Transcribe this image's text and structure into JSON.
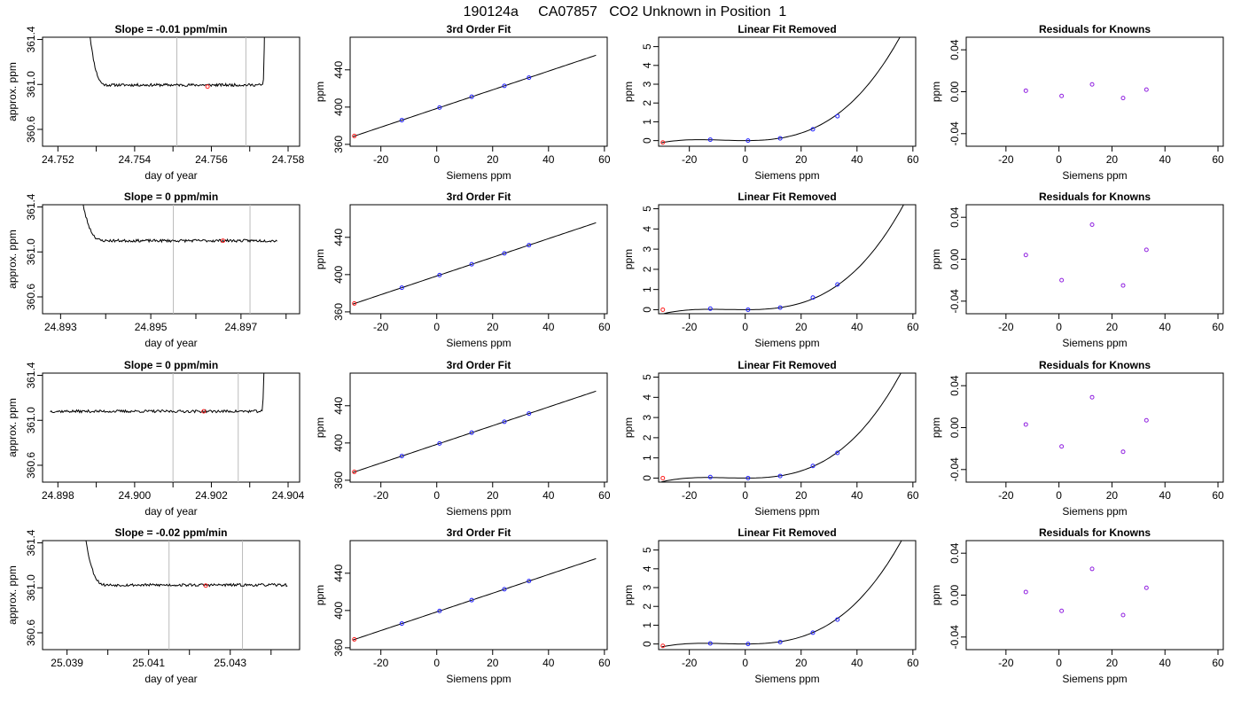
{
  "page_title": "190124a     CA07857   CO2 Unknown in Position  1",
  "colors": {
    "line": "#000000",
    "known": "#2020ff",
    "unknown": "#ff2020",
    "residual": "#9020e0",
    "window": "#bbbbbb"
  },
  "chart_data": [
    {
      "row": 1,
      "type": "line",
      "title": "Slope =  -0.01  ppm/min",
      "xlabel": "day of year",
      "ylabel": "approx. ppm",
      "xlim": [
        24.7516,
        24.7583
      ],
      "xticks": [
        24.752,
        24.753,
        24.754,
        24.755,
        24.756,
        24.757,
        24.758
      ],
      "xtick_labels": [
        "24.752",
        "",
        "24.754",
        "",
        "24.756",
        "",
        "24.758"
      ],
      "ylim": [
        360.45,
        361.42
      ],
      "yticks": [
        360.6,
        361.0,
        361.4
      ],
      "ytick_labels": [
        "360.6",
        "361.0",
        "361.4"
      ],
      "window": [
        24.7551,
        24.7569
      ],
      "marker": [
        24.7559,
        360.98
      ],
      "trace": {
        "x_start": 24.7528,
        "x_end": 24.7574,
        "base": 360.995,
        "noise": 0.012,
        "seed": 11,
        "pre_end": 24.7533,
        "post_start": 24.75735
      }
    },
    {
      "row": 1,
      "type": "scatter",
      "title": "3rd Order Fit",
      "xlabel": "Siemens ppm",
      "ylabel": "ppm",
      "xlim": [
        -31,
        61
      ],
      "xticks": [
        -20,
        0,
        20,
        40,
        60
      ],
      "ylim": [
        358,
        475
      ],
      "yticks": [
        360,
        400,
        440
      ],
      "fit": "linear",
      "slope": 1.003,
      "intercept": 398.5,
      "fit_range": [
        -30,
        57
      ],
      "knowns": {
        "x": [
          -12.5,
          1,
          12.5,
          24.2,
          33
        ],
        "y": [
          386.0,
          399.5,
          411.1,
          422.8,
          431.6
        ]
      },
      "unknown": [
        -29.5,
        369.0
      ]
    },
    {
      "row": 1,
      "type": "scatter",
      "title": "Linear Fit Removed",
      "xlabel": "Siemens ppm",
      "ylabel": "ppm",
      "xlim": [
        -31,
        61
      ],
      "xticks": [
        -20,
        0,
        20,
        40,
        60
      ],
      "ylim": [
        -0.3,
        5.5
      ],
      "yticks": [
        0,
        1,
        2,
        3,
        4,
        5
      ],
      "fit": "cubic",
      "coef": [
        0.0,
        0.0,
        0.00055,
        2.25e-05
      ],
      "fit_range": [
        -30,
        57.5
      ],
      "knowns": {
        "x": [
          -12.5,
          1,
          12.5,
          24.2,
          33
        ],
        "y": [
          0.05,
          0.0,
          0.12,
          0.6,
          1.3
        ]
      },
      "unknown": [
        -29.5,
        -0.1
      ]
    },
    {
      "row": 1,
      "type": "scatter",
      "title": "Residuals for Knowns",
      "xlabel": "Siemens ppm",
      "ylabel": "ppm",
      "xlim": [
        -35,
        62
      ],
      "xticks": [
        -20,
        0,
        20,
        40,
        60
      ],
      "ylim": [
        -0.052,
        0.052
      ],
      "yticks": [
        -0.04,
        0.0,
        0.04
      ],
      "ytick_labels": [
        "-0.04",
        "0.00",
        "0.04"
      ],
      "residuals": {
        "x": [
          -12.5,
          1,
          12.5,
          24.2,
          33
        ],
        "y": [
          0.001,
          -0.004,
          0.007,
          -0.006,
          0.002
        ]
      }
    },
    {
      "row": 2,
      "type": "line",
      "title": "Slope =  0  ppm/min",
      "xlabel": "day of year",
      "ylabel": "approx. ppm",
      "xlim": [
        24.8926,
        24.8983
      ],
      "xticks": [
        24.893,
        24.894,
        24.895,
        24.896,
        24.897,
        24.898
      ],
      "xtick_labels": [
        "24.893",
        "",
        "24.895",
        "",
        "24.897",
        ""
      ],
      "ylim": [
        360.45,
        361.42
      ],
      "yticks": [
        360.6,
        361.0,
        361.4
      ],
      "ytick_labels": [
        "360.6",
        "361.0",
        "361.4"
      ],
      "window": [
        24.8955,
        24.8972
      ],
      "marker": [
        24.8966,
        361.1
      ],
      "trace": {
        "x_start": 24.8934,
        "x_end": 24.8978,
        "base": 361.1,
        "noise": 0.012,
        "seed": 23,
        "pre_end": 24.894,
        "post_start": null
      }
    },
    {
      "row": 2,
      "type": "scatter",
      "title": "3rd Order Fit",
      "xlabel": "Siemens ppm",
      "ylabel": "ppm",
      "xlim": [
        -31,
        61
      ],
      "xticks": [
        -20,
        0,
        20,
        40,
        60
      ],
      "ylim": [
        358,
        475
      ],
      "yticks": [
        360,
        400,
        440
      ],
      "fit": "linear",
      "slope": 1.003,
      "intercept": 398.5,
      "fit_range": [
        -30,
        57
      ],
      "knowns": {
        "x": [
          -12.5,
          1,
          12.5,
          24.2,
          33
        ],
        "y": [
          386.0,
          399.5,
          411.1,
          422.8,
          431.6
        ]
      },
      "unknown": [
        -29.5,
        369.0
      ]
    },
    {
      "row": 2,
      "type": "scatter",
      "title": "Linear Fit Removed",
      "xlabel": "Siemens ppm",
      "ylabel": "ppm",
      "xlim": [
        -31,
        61
      ],
      "xticks": [
        -20,
        0,
        20,
        40,
        60
      ],
      "ylim": [
        -0.2,
        5.2
      ],
      "yticks": [
        0,
        1,
        2,
        3,
        4,
        5
      ],
      "fit": "cubic",
      "coef": [
        0.0,
        0.0,
        0.0004,
        2.15e-05
      ],
      "fit_range": [
        -30,
        57.5
      ],
      "knowns": {
        "x": [
          -12.5,
          1,
          12.5,
          24.2,
          33
        ],
        "y": [
          0.05,
          0.0,
          0.1,
          0.6,
          1.25
        ]
      },
      "unknown": [
        -29.5,
        0.0
      ]
    },
    {
      "row": 2,
      "type": "scatter",
      "title": "Residuals for Knowns",
      "xlabel": "Siemens ppm",
      "ylabel": "ppm",
      "xlim": [
        -35,
        62
      ],
      "xticks": [
        -20,
        0,
        20,
        40,
        60
      ],
      "ylim": [
        -0.052,
        0.052
      ],
      "yticks": [
        -0.04,
        0.0,
        0.04
      ],
      "ytick_labels": [
        "-0.04",
        "0.00",
        "0.04"
      ],
      "residuals": {
        "x": [
          -12.5,
          1,
          12.5,
          24.2,
          33
        ],
        "y": [
          0.004,
          -0.02,
          0.033,
          -0.025,
          0.009
        ]
      }
    },
    {
      "row": 3,
      "type": "line",
      "title": "Slope =  0  ppm/min",
      "xlabel": "day of year",
      "ylabel": "approx. ppm",
      "xlim": [
        24.8976,
        24.9043
      ],
      "xticks": [
        24.898,
        24.899,
        24.9,
        24.901,
        24.902,
        24.903,
        24.904
      ],
      "xtick_labels": [
        "24.898",
        "",
        "24.900",
        "",
        "24.902",
        "",
        "24.904"
      ],
      "ylim": [
        360.45,
        361.42
      ],
      "yticks": [
        360.6,
        361.0,
        361.4
      ],
      "ytick_labels": [
        "360.6",
        "361.0",
        "361.4"
      ],
      "window": [
        24.901,
        24.9027
      ],
      "marker": [
        24.9018,
        361.08
      ],
      "trace": {
        "x_start": 24.8978,
        "x_end": 24.9034,
        "base": 361.08,
        "noise": 0.012,
        "seed": 37,
        "pre_end": null,
        "post_start": 24.90333
      }
    },
    {
      "row": 3,
      "type": "scatter",
      "title": "3rd Order Fit",
      "xlabel": "Siemens ppm",
      "ylabel": "ppm",
      "xlim": [
        -31,
        61
      ],
      "xticks": [
        -20,
        0,
        20,
        40,
        60
      ],
      "ylim": [
        358,
        475
      ],
      "yticks": [
        360,
        400,
        440
      ],
      "fit": "linear",
      "slope": 1.003,
      "intercept": 398.5,
      "fit_range": [
        -30,
        57
      ],
      "knowns": {
        "x": [
          -12.5,
          1,
          12.5,
          24.2,
          33
        ],
        "y": [
          386.0,
          399.5,
          411.1,
          422.8,
          431.6
        ]
      },
      "unknown": [
        -29.5,
        369.0
      ]
    },
    {
      "row": 3,
      "type": "scatter",
      "title": "Linear Fit Removed",
      "xlabel": "Siemens ppm",
      "ylabel": "ppm",
      "xlim": [
        -31,
        61
      ],
      "xticks": [
        -20,
        0,
        20,
        40,
        60
      ],
      "ylim": [
        -0.2,
        5.2
      ],
      "yticks": [
        0,
        1,
        2,
        3,
        4,
        5
      ],
      "fit": "cubic",
      "coef": [
        0.0,
        0.0,
        0.00045,
        2.2e-05
      ],
      "fit_range": [
        -30,
        57.5
      ],
      "knowns": {
        "x": [
          -12.5,
          1,
          12.5,
          24.2,
          33
        ],
        "y": [
          0.05,
          0.0,
          0.1,
          0.6,
          1.25
        ]
      },
      "unknown": [
        -29.5,
        0.0
      ]
    },
    {
      "row": 3,
      "type": "scatter",
      "title": "Residuals for Knowns",
      "xlabel": "Siemens ppm",
      "ylabel": "ppm",
      "xlim": [
        -35,
        62
      ],
      "xticks": [
        -20,
        0,
        20,
        40,
        60
      ],
      "ylim": [
        -0.052,
        0.052
      ],
      "yticks": [
        -0.04,
        0.0,
        0.04
      ],
      "ytick_labels": [
        "-0.04",
        "0.00",
        "0.04"
      ],
      "residuals": {
        "x": [
          -12.5,
          1,
          12.5,
          24.2,
          33
        ],
        "y": [
          0.003,
          -0.018,
          0.029,
          -0.023,
          0.007
        ]
      }
    },
    {
      "row": 4,
      "type": "line",
      "title": "Slope =  -0.02  ppm/min",
      "xlabel": "day of year",
      "ylabel": "approx. ppm",
      "xlim": [
        25.0384,
        25.0447
      ],
      "xticks": [
        25.039,
        25.04,
        25.041,
        25.042,
        25.043,
        25.044
      ],
      "xtick_labels": [
        "25.039",
        "",
        "25.041",
        "",
        "25.043",
        ""
      ],
      "ylim": [
        360.45,
        361.42
      ],
      "yticks": [
        360.6,
        361.0,
        361.4
      ],
      "ytick_labels": [
        "360.6",
        "361.0",
        "361.4"
      ],
      "window": [
        25.0415,
        25.0433
      ],
      "marker": [
        25.0424,
        361.02
      ],
      "trace": {
        "x_start": 25.0394,
        "x_end": 25.0444,
        "base": 361.025,
        "noise": 0.012,
        "seed": 53,
        "pre_end": 25.04,
        "post_start": null
      }
    },
    {
      "row": 4,
      "type": "scatter",
      "title": "3rd Order Fit",
      "xlabel": "Siemens ppm",
      "ylabel": "ppm",
      "xlim": [
        -31,
        61
      ],
      "xticks": [
        -20,
        0,
        20,
        40,
        60
      ],
      "ylim": [
        358,
        475
      ],
      "yticks": [
        360,
        400,
        440
      ],
      "fit": "linear",
      "slope": 1.003,
      "intercept": 398.5,
      "fit_range": [
        -30,
        57
      ],
      "knowns": {
        "x": [
          -12.5,
          1,
          12.5,
          24.2,
          33
        ],
        "y": [
          386.0,
          399.5,
          411.1,
          422.8,
          431.6
        ]
      },
      "unknown": [
        -29.5,
        369.0
      ]
    },
    {
      "row": 4,
      "type": "scatter",
      "title": "Linear Fit Removed",
      "xlabel": "Siemens ppm",
      "ylabel": "ppm",
      "xlim": [
        -31,
        61
      ],
      "xticks": [
        -20,
        0,
        20,
        40,
        60
      ],
      "ylim": [
        -0.3,
        5.5
      ],
      "yticks": [
        0,
        1,
        2,
        3,
        4,
        5
      ],
      "fit": "cubic",
      "coef": [
        0.0,
        0.0,
        0.0005,
        2.25e-05
      ],
      "fit_range": [
        -30,
        57.5
      ],
      "knowns": {
        "x": [
          -12.5,
          1,
          12.5,
          24.2,
          33
        ],
        "y": [
          0.03,
          0.0,
          0.1,
          0.6,
          1.3
        ]
      },
      "unknown": [
        -29.5,
        -0.1
      ]
    },
    {
      "row": 4,
      "type": "scatter",
      "title": "Residuals for Knowns",
      "xlabel": "Siemens ppm",
      "ylabel": "ppm",
      "xlim": [
        -35,
        62
      ],
      "xticks": [
        -20,
        0,
        20,
        40,
        60
      ],
      "ylim": [
        -0.052,
        0.052
      ],
      "yticks": [
        -0.04,
        0.0,
        0.04
      ],
      "ytick_labels": [
        "-0.04",
        "0.00",
        "0.04"
      ],
      "residuals": {
        "x": [
          -12.5,
          1,
          12.5,
          24.2,
          33
        ],
        "y": [
          0.003,
          -0.015,
          0.025,
          -0.019,
          0.007
        ]
      }
    }
  ]
}
